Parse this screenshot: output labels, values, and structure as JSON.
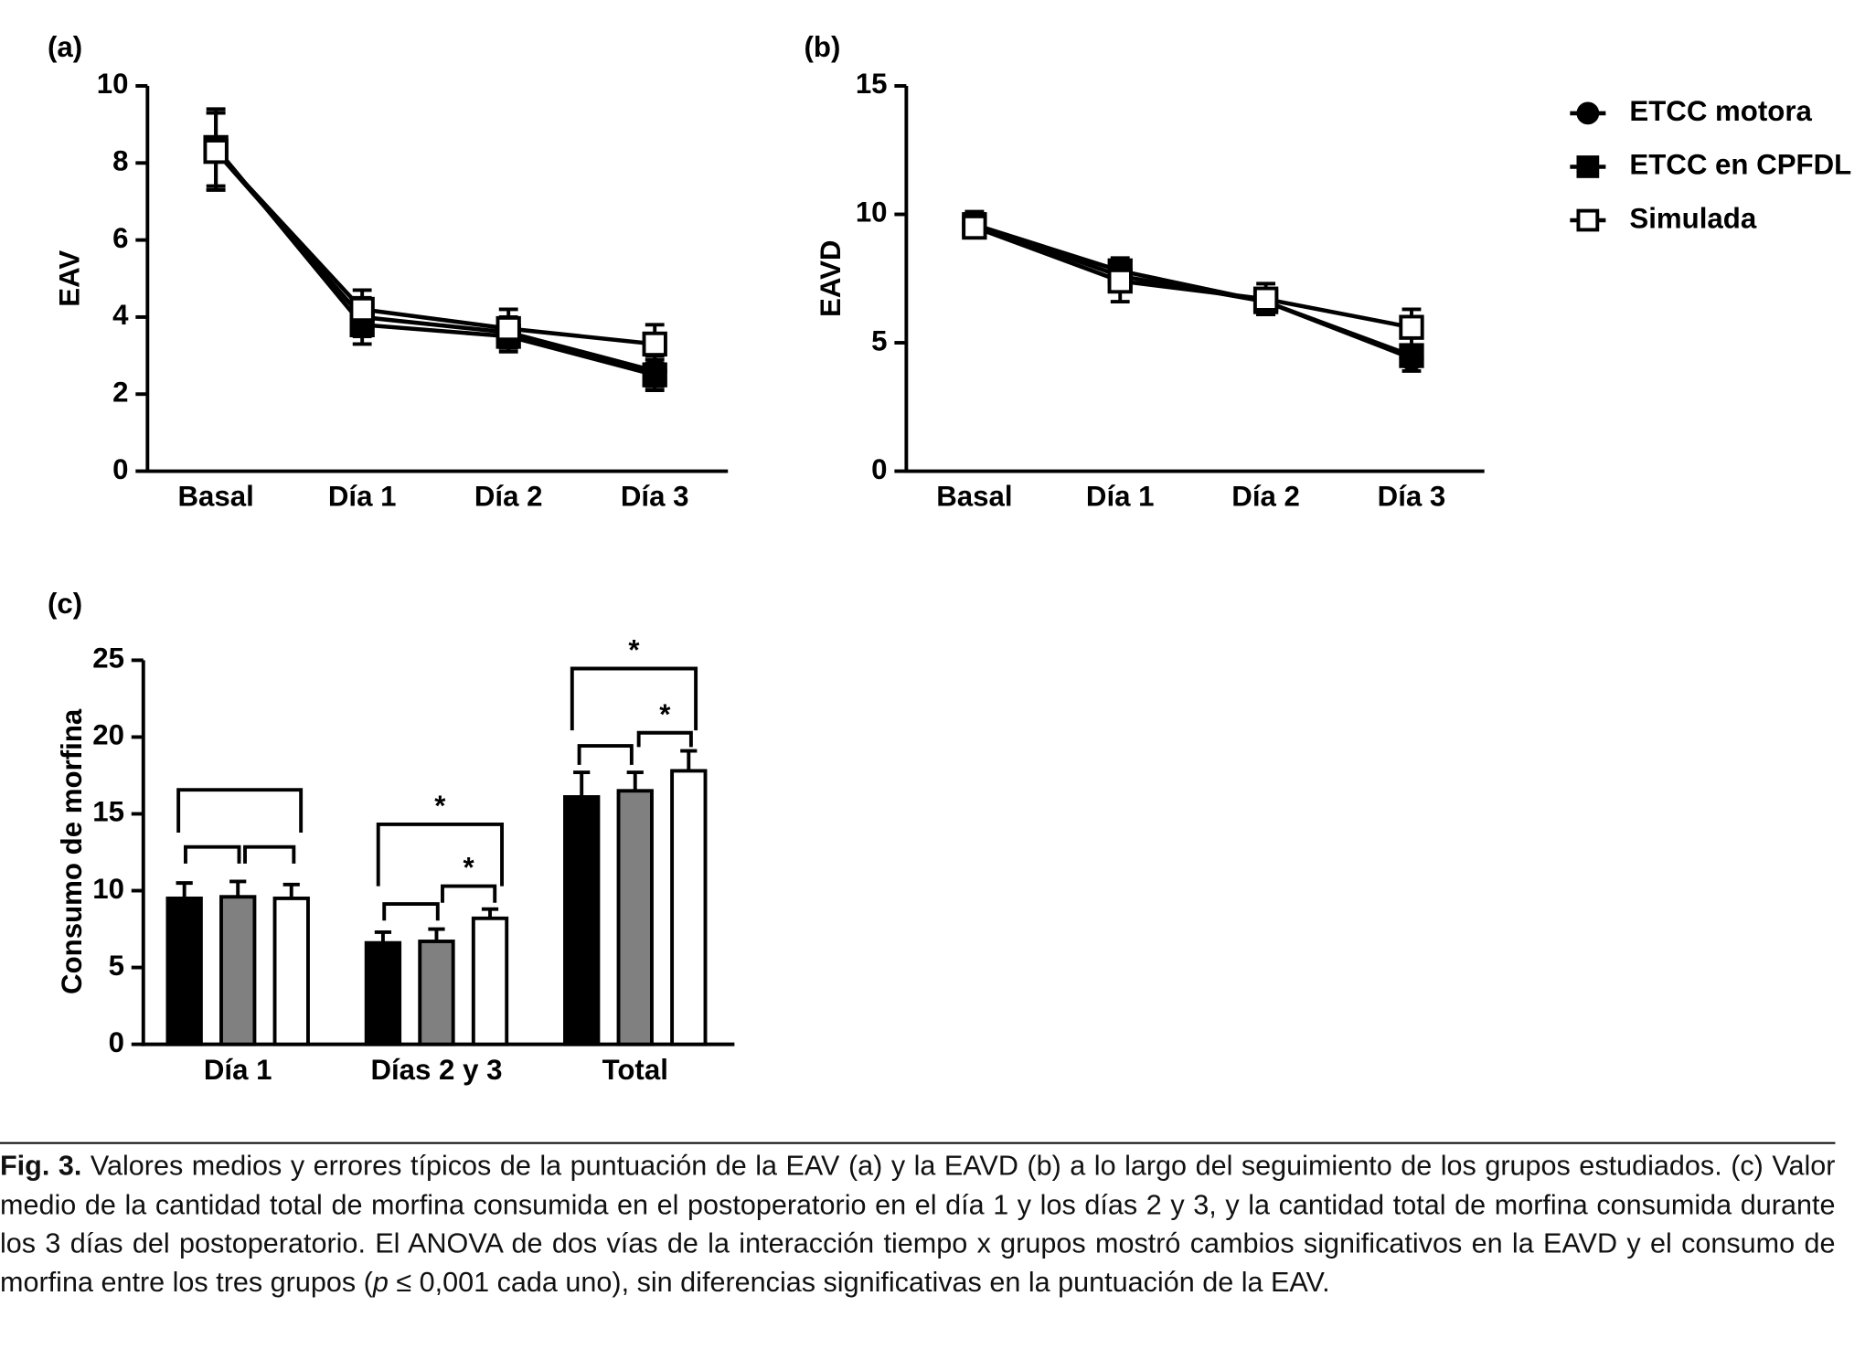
{
  "chart_data": [
    {
      "type": "line",
      "panel": "(a)",
      "y_label": "EAV",
      "categories": [
        "Basal",
        "Día 1",
        "Día 2",
        "Día 3"
      ],
      "ylim": [
        0,
        10
      ],
      "yticks": [
        0,
        2,
        4,
        6,
        8,
        10
      ],
      "legend": "right",
      "series": [
        {
          "name": "ETCC motora",
          "color": "#000000",
          "marker": "circle",
          "values": [
            8.3,
            4.0,
            3.6,
            2.6
          ],
          "errors": [
            1.0,
            0.5,
            0.4,
            0.4
          ]
        },
        {
          "name": "ETCC en CPFDL",
          "color": "#000000",
          "marker": "square",
          "values": [
            8.4,
            3.8,
            3.5,
            2.5
          ],
          "errors": [
            1.0,
            0.5,
            0.4,
            0.4
          ]
        },
        {
          "name": "Simulada",
          "color": "#000000",
          "marker": "open-square",
          "values": [
            8.3,
            4.2,
            3.7,
            3.3
          ],
          "errors": [
            1.0,
            0.5,
            0.5,
            0.5
          ]
        }
      ]
    },
    {
      "type": "line",
      "panel": "(b)",
      "y_label": "EAVD",
      "categories": [
        "Basal",
        "Día 1",
        "Día 2",
        "Día 3"
      ],
      "ylim": [
        0,
        15
      ],
      "yticks": [
        0,
        5,
        10,
        15
      ],
      "series": [
        {
          "color": "#000000",
          "marker": "circle",
          "values": [
            9.6,
            7.6,
            6.6,
            4.4
          ],
          "errors": [
            0.5,
            0.5,
            0.5,
            0.5
          ]
        },
        {
          "color": "#000000",
          "marker": "square",
          "values": [
            9.6,
            7.8,
            6.6,
            4.5
          ],
          "errors": [
            0.5,
            0.5,
            0.5,
            0.4
          ]
        },
        {
          "color": "#000000",
          "marker": "open-square",
          "values": [
            9.5,
            7.4,
            6.7,
            5.6
          ],
          "errors": [
            0.4,
            0.8,
            0.6,
            0.7
          ]
        }
      ]
    },
    {
      "type": "bar",
      "panel": "(c)",
      "y_label": "Consumo de morfina",
      "categories": [
        "Día 1",
        "Días 2 y 3",
        "Total"
      ],
      "ylim": [
        0,
        25
      ],
      "yticks": [
        0,
        5,
        10,
        15,
        20,
        25
      ],
      "series": [
        {
          "color": "#000000",
          "values": [
            9.5,
            6.6,
            16.1
          ],
          "errors": [
            1.0,
            0.7,
            1.6
          ]
        },
        {
          "color": "#808080",
          "values": [
            9.6,
            6.7,
            16.5
          ],
          "errors": [
            1.0,
            0.8,
            1.2
          ]
        },
        {
          "color": "#ffffff",
          "values": [
            9.5,
            8.2,
            17.8
          ],
          "errors": [
            0.9,
            0.6,
            1.3
          ]
        }
      ],
      "annotations": [
        "*",
        "*",
        "*",
        "*"
      ]
    }
  ],
  "caption": {
    "label": "Fig. 3.",
    "parts": [
      "Valores medios y errores típicos de la puntuación de la EAV (a) y la EAVD (b) a lo largo del seguimiento de los grupos estudiados. (c) Valor medio de la cantidad total de morfina consumida en el postoperatorio en el día 1 y los días 2 y 3, y la cantidad total de morfina consumida durante los 3 días del postoperatorio. El ANOVA de dos vías de la interacción tiempo x grupos mostró cambios significativos en la EAVD y el consumo de morfina entre los tres grupos (",
      "p",
      " ≤ 0,001 cada uno), sin diferencias significativas en la puntuación de la EAV."
    ]
  }
}
